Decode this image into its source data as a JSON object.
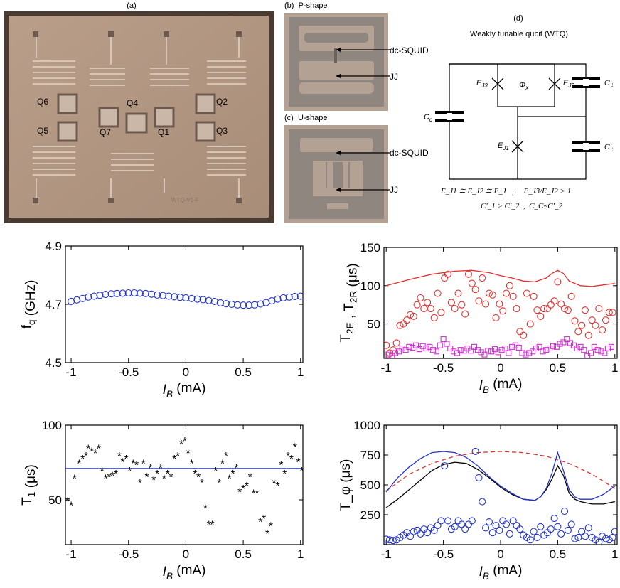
{
  "figure": {
    "panel_labels": {
      "a": "(a)",
      "b": "(b)",
      "c": "(c)",
      "d": "(d)"
    },
    "chip": {
      "qubit_labels": [
        "Q6",
        "Q5",
        "Q7",
        "Q4",
        "Q1",
        "Q2",
        "Q3"
      ],
      "chip_id": "WTQ-V1-F"
    },
    "b": {
      "title": "P-shape",
      "squid_label": "dc-SQUID",
      "jj_label": "JJ"
    },
    "c": {
      "title": "U-shape",
      "squid_label": "dc-SQUID",
      "jj_label": "JJ"
    },
    "d": {
      "title": "Weakly tunable qubit (WTQ)",
      "labels": {
        "ej3": "E_J3",
        "ej2": "E_J2",
        "phix": "Φ_x",
        "c2p": "C′_2",
        "cc": "C_c",
        "ej1": "E_J1",
        "c1p": "C′_1"
      },
      "eq1": "E_J1 ≅ E_J2 ≅ E_J   ,     E_J3/E_J2 > 1",
      "eq2": "C′_1 > C′_2  ,  C_C~C′_2"
    }
  },
  "chart_data": [
    {
      "type": "scatter",
      "id": "fq",
      "xlabel": "I_B (mA)",
      "ylabel": "f_q (GHz)",
      "xlim": [
        -1.05,
        1.02
      ],
      "ylim": [
        4.5,
        4.9
      ],
      "xticks": [
        "-1",
        "-0.5",
        "0",
        "0.5",
        "1"
      ],
      "yticks": [
        "4.5",
        "4.7",
        "4.9"
      ],
      "series": [
        {
          "marker": "circle",
          "color": "#2233cc",
          "x": [
            -1.0,
            -0.95,
            -0.9,
            -0.85,
            -0.8,
            -0.75,
            -0.7,
            -0.65,
            -0.6,
            -0.55,
            -0.5,
            -0.45,
            -0.4,
            -0.35,
            -0.3,
            -0.25,
            -0.2,
            -0.15,
            -0.1,
            -0.05,
            0.0,
            0.05,
            0.1,
            0.15,
            0.2,
            0.25,
            0.3,
            0.35,
            0.4,
            0.45,
            0.5,
            0.55,
            0.6,
            0.65,
            0.7,
            0.75,
            0.8,
            0.85,
            0.9,
            0.95,
            1.0
          ],
          "y": [
            4.71,
            4.715,
            4.72,
            4.725,
            4.728,
            4.731,
            4.734,
            4.736,
            4.737,
            4.738,
            4.739,
            4.739,
            4.738,
            4.737,
            4.735,
            4.732,
            4.73,
            4.728,
            4.726,
            4.724,
            4.722,
            4.72,
            4.718,
            4.716,
            4.713,
            4.71,
            4.705,
            4.702,
            4.7,
            4.698,
            4.697,
            4.697,
            4.698,
            4.701,
            4.706,
            4.712,
            4.718,
            4.722,
            4.725,
            4.727,
            4.728
          ]
        }
      ]
    },
    {
      "type": "scatter",
      "id": "t2",
      "xlabel": "I_B (mA)",
      "ylabel": "T_2E , T_2R (μs)",
      "xlim": [
        -1.02,
        1.02
      ],
      "ylim": [
        5,
        150
      ],
      "xticks": [
        "-1",
        "-0.5",
        "0",
        "0.5",
        "1"
      ],
      "yticks": [
        "50",
        "100",
        "150"
      ],
      "series": [
        {
          "name": "T2E",
          "marker": "circle",
          "color": "#e03030",
          "x": [
            -1.0,
            -0.97,
            -0.94,
            -0.91,
            -0.88,
            -0.85,
            -0.82,
            -0.79,
            -0.76,
            -0.73,
            -0.7,
            -0.67,
            -0.64,
            -0.61,
            -0.58,
            -0.55,
            -0.52,
            -0.49,
            -0.46,
            -0.43,
            -0.4,
            -0.37,
            -0.34,
            -0.31,
            -0.28,
            -0.25,
            -0.22,
            -0.19,
            -0.16,
            -0.13,
            -0.1,
            -0.07,
            -0.04,
            -0.01,
            0.02,
            0.05,
            0.08,
            0.11,
            0.14,
            0.17,
            0.2,
            0.23,
            0.26,
            0.29,
            0.32,
            0.35,
            0.38,
            0.41,
            0.44,
            0.47,
            0.5,
            0.53,
            0.56,
            0.59,
            0.62,
            0.65,
            0.68,
            0.71,
            0.74,
            0.77,
            0.8,
            0.83,
            0.86,
            0.89,
            0.92,
            0.95,
            0.98
          ],
          "y": [
            22,
            12,
            16,
            25,
            48,
            50,
            55,
            62,
            60,
            75,
            84,
            70,
            78,
            70,
            58,
            90,
            65,
            110,
            115,
            78,
            70,
            90,
            75,
            63,
            115,
            103,
            95,
            80,
            110,
            76,
            90,
            88,
            58,
            76,
            67,
            90,
            100,
            86,
            70,
            40,
            35,
            90,
            50,
            86,
            68,
            60,
            70,
            70,
            75,
            80,
            105,
            76,
            70,
            68,
            86,
            54,
            40,
            48,
            68,
            35,
            55,
            48,
            70,
            42,
            55,
            65,
            65
          ]
        },
        {
          "name": "T2R",
          "marker": "square",
          "color": "#d030d0",
          "x": [
            -0.98,
            -0.95,
            -0.92,
            -0.89,
            -0.86,
            -0.83,
            -0.8,
            -0.77,
            -0.74,
            -0.71,
            -0.68,
            -0.65,
            -0.62,
            -0.59,
            -0.56,
            -0.53,
            -0.5,
            -0.47,
            -0.44,
            -0.41,
            -0.38,
            -0.35,
            -0.32,
            -0.29,
            -0.26,
            -0.23,
            -0.2,
            -0.17,
            -0.14,
            -0.11,
            -0.08,
            -0.05,
            -0.02,
            0.01,
            0.04,
            0.07,
            0.1,
            0.13,
            0.16,
            0.19,
            0.22,
            0.25,
            0.28,
            0.31,
            0.34,
            0.37,
            0.4,
            0.43,
            0.46,
            0.49,
            0.52,
            0.55,
            0.58,
            0.61,
            0.64,
            0.67,
            0.7,
            0.73,
            0.76,
            0.79,
            0.82,
            0.85,
            0.88,
            0.91,
            0.94,
            0.97
          ],
          "y": [
            10,
            8,
            12,
            14,
            18,
            16,
            20,
            19,
            22,
            17,
            21,
            18,
            20,
            16,
            14,
            22,
            30,
            24,
            18,
            14,
            12,
            16,
            15,
            18,
            15,
            20,
            16,
            13,
            10,
            15,
            14,
            17,
            13,
            16,
            18,
            12,
            20,
            22,
            19,
            12,
            10,
            12,
            14,
            18,
            20,
            14,
            16,
            18,
            21,
            20,
            24,
            26,
            30,
            25,
            22,
            18,
            20,
            16,
            8,
            12,
            20,
            16,
            14,
            12,
            18,
            20
          ]
        }
      ],
      "lines": [
        {
          "name": "fit",
          "color": "#e03030",
          "x": [
            -1.0,
            -0.8,
            -0.6,
            -0.4,
            -0.25,
            -0.1,
            0.0,
            0.1,
            0.2,
            0.3,
            0.4,
            0.45,
            0.5,
            0.55,
            0.6,
            0.7,
            0.8,
            0.9,
            1.0
          ],
          "y": [
            100,
            108,
            115,
            119,
            120,
            117,
            113,
            110,
            106,
            105,
            110,
            116,
            120,
            116,
            106,
            100,
            99,
            101,
            103
          ]
        }
      ]
    },
    {
      "type": "scatter",
      "id": "t1",
      "xlabel": "I_B (mA)",
      "ylabel": "T_1 (μs)",
      "xlim": [
        -1.05,
        1.02
      ],
      "ylim": [
        20,
        100
      ],
      "xticks": [
        "-1",
        "-0.5",
        "0",
        "0.5",
        "1"
      ],
      "yticks": [
        "50",
        "100"
      ],
      "series": [
        {
          "marker": "star",
          "color": "#000000",
          "x": [
            -1.03,
            -1.0,
            -0.97,
            -0.93,
            -0.9,
            -0.87,
            -0.85,
            -0.82,
            -0.79,
            -0.76,
            -0.73,
            -0.7,
            -0.67,
            -0.64,
            -0.61,
            -0.58,
            -0.55,
            -0.52,
            -0.49,
            -0.46,
            -0.43,
            -0.4,
            -0.37,
            -0.34,
            -0.31,
            -0.28,
            -0.25,
            -0.22,
            -0.19,
            -0.16,
            -0.13,
            -0.1,
            -0.07,
            -0.04,
            -0.01,
            0.02,
            0.05,
            0.08,
            0.11,
            0.14,
            0.17,
            0.2,
            0.23,
            0.26,
            0.29,
            0.32,
            0.35,
            0.38,
            0.41,
            0.44,
            0.47,
            0.5,
            0.53,
            0.56,
            0.59,
            0.62,
            0.65,
            0.68,
            0.71,
            0.74,
            0.77,
            0.8,
            0.83,
            0.86,
            0.89,
            0.92,
            0.95,
            0.98,
            1.01
          ],
          "y": [
            50,
            47,
            65,
            75,
            78,
            80,
            85,
            83,
            82,
            85,
            70,
            65,
            66,
            67,
            68,
            80,
            76,
            78,
            70,
            75,
            74,
            62,
            75,
            66,
            72,
            64,
            68,
            72,
            65,
            68,
            66,
            78,
            80,
            88,
            90,
            82,
            75,
            68,
            66,
            62,
            45,
            34,
            34,
            70,
            62,
            75,
            80,
            65,
            68,
            72,
            56,
            58,
            60,
            66,
            55,
            55,
            36,
            38,
            28,
            33,
            62,
            60,
            74,
            68,
            80,
            78,
            86,
            76,
            70
          ]
        }
      ],
      "lines": [
        {
          "name": "fit",
          "color": "#2233cc",
          "x": [
            -1.05,
            1.02
          ],
          "y": [
            71,
            71
          ]
        }
      ]
    },
    {
      "type": "scatter",
      "id": "tphi",
      "xlabel": "I_B (mA)",
      "ylabel": "T_φ (μs)",
      "xlim": [
        -1.02,
        1.02
      ],
      "ylim": [
        0,
        1000
      ],
      "xticks": [
        "-1",
        "-0.5",
        "0",
        "0.5",
        "1"
      ],
      "yticks": [
        "250",
        "500",
        "750",
        "1000"
      ],
      "series": [
        {
          "marker": "circle",
          "color": "#2233cc",
          "x": [
            -1.0,
            -0.97,
            -0.94,
            -0.91,
            -0.88,
            -0.85,
            -0.82,
            -0.79,
            -0.76,
            -0.73,
            -0.7,
            -0.67,
            -0.64,
            -0.61,
            -0.58,
            -0.55,
            -0.52,
            -0.49,
            -0.46,
            -0.43,
            -0.4,
            -0.37,
            -0.34,
            -0.31,
            -0.28,
            -0.25,
            -0.22,
            -0.19,
            -0.16,
            -0.13,
            -0.1,
            -0.07,
            -0.04,
            -0.01,
            0.02,
            0.05,
            0.08,
            0.11,
            0.14,
            0.17,
            0.2,
            0.23,
            0.26,
            0.29,
            0.32,
            0.35,
            0.38,
            0.41,
            0.44,
            0.47,
            0.5,
            0.53,
            0.56,
            0.59,
            0.62,
            0.65,
            0.68,
            0.71,
            0.74,
            0.77,
            0.8,
            0.83,
            0.86,
            0.89,
            0.92,
            0.95,
            0.98,
            1.0
          ],
          "y": [
            45,
            40,
            35,
            40,
            60,
            80,
            100,
            70,
            110,
            120,
            90,
            130,
            100,
            140,
            120,
            160,
            200,
            660,
            200,
            130,
            150,
            200,
            170,
            130,
            170,
            200,
            780,
            560,
            360,
            140,
            190,
            100,
            160,
            120,
            200,
            170,
            90,
            200,
            160,
            130,
            80,
            60,
            40,
            110,
            60,
            150,
            80,
            100,
            130,
            220,
            150,
            90,
            280,
            120,
            170,
            50,
            60,
            110,
            70,
            140,
            60,
            40,
            20,
            70,
            50,
            40,
            60,
            110
          ]
        }
      ],
      "lines": [
        {
          "name": "dashed",
          "color": "#e03030",
          "dash": true,
          "x": [
            -1.0,
            -0.8,
            -0.6,
            -0.4,
            -0.2,
            0.0,
            0.2,
            0.4,
            0.6,
            0.8,
            1.0
          ],
          "y": [
            450,
            590,
            680,
            740,
            770,
            780,
            770,
            740,
            680,
            590,
            470
          ]
        },
        {
          "name": "black",
          "color": "#000000",
          "x": [
            -1.0,
            -0.9,
            -0.8,
            -0.7,
            -0.6,
            -0.5,
            -0.4,
            -0.3,
            -0.2,
            -0.1,
            0.0,
            0.1,
            0.2,
            0.3,
            0.35,
            0.4,
            0.45,
            0.5,
            0.55,
            0.6,
            0.65,
            0.7,
            0.8,
            0.9,
            1.0
          ],
          "y": [
            310,
            380,
            460,
            540,
            620,
            670,
            690,
            680,
            630,
            560,
            480,
            420,
            380,
            370,
            400,
            460,
            550,
            660,
            580,
            430,
            380,
            360,
            340,
            340,
            360
          ]
        },
        {
          "name": "blue",
          "color": "#2233cc",
          "x": [
            -1.0,
            -0.9,
            -0.8,
            -0.7,
            -0.6,
            -0.5,
            -0.4,
            -0.3,
            -0.2,
            -0.1,
            0.0,
            0.1,
            0.2,
            0.3,
            0.35,
            0.4,
            0.45,
            0.5,
            0.55,
            0.6,
            0.65,
            0.7,
            0.8,
            0.9,
            1.0
          ],
          "y": [
            440,
            560,
            650,
            720,
            770,
            780,
            770,
            730,
            660,
            570,
            490,
            430,
            380,
            370,
            400,
            470,
            600,
            770,
            620,
            460,
            400,
            380,
            380,
            420,
            490
          ]
        }
      ]
    }
  ]
}
